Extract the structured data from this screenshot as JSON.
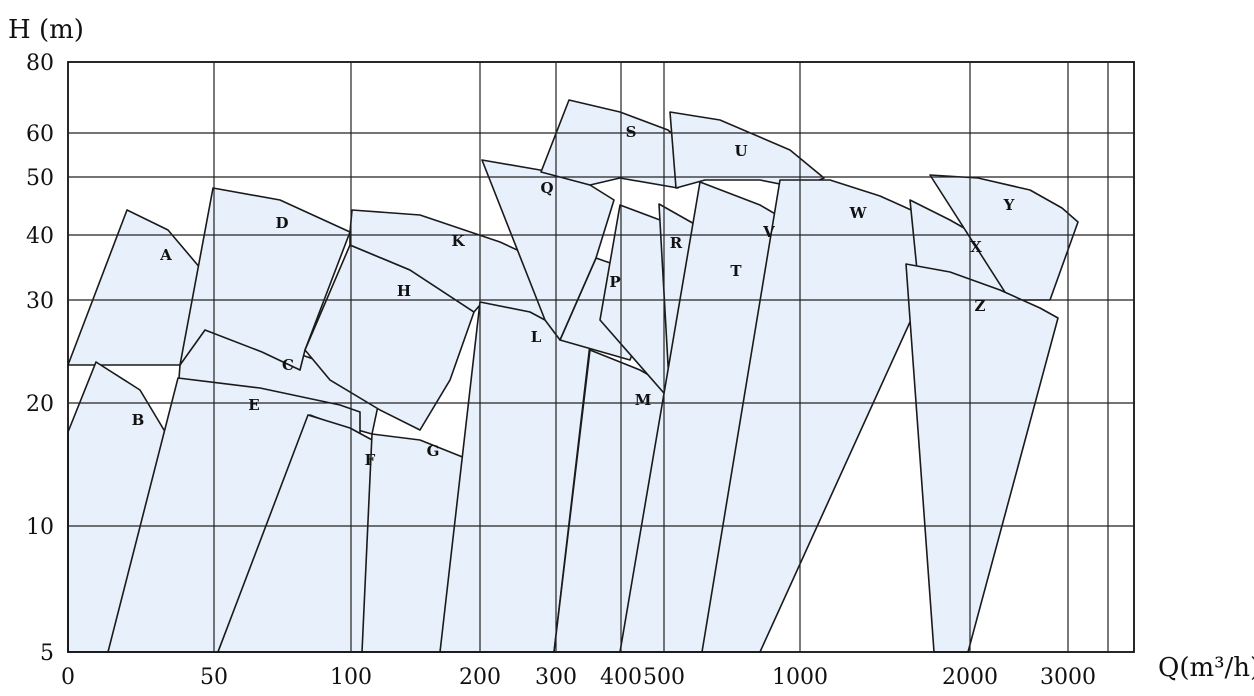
{
  "chart_data": {
    "type": "area",
    "ylabel": "H (m)",
    "xlabel": "Q(m³/h)",
    "y_ticks": [
      {
        "value": 5,
        "label": "5"
      },
      {
        "value": 10,
        "label": "10"
      },
      {
        "value": 20,
        "label": "20"
      },
      {
        "value": 30,
        "label": "30"
      },
      {
        "value": 40,
        "label": "40"
      },
      {
        "value": 50,
        "label": "50"
      },
      {
        "value": 60,
        "label": "60"
      },
      {
        "value": 80,
        "label": "80"
      }
    ],
    "x_ticks": [
      {
        "value": 0,
        "label": "0"
      },
      {
        "value": 50,
        "label": "50"
      },
      {
        "value": 100,
        "label": "100"
      },
      {
        "value": 200,
        "label": "200"
      },
      {
        "value": 300,
        "label": "300"
      },
      {
        "value": 400,
        "label": "400"
      },
      {
        "value": 500,
        "label": "500"
      },
      {
        "value": 1000,
        "label": "1000"
      },
      {
        "value": 2000,
        "label": "2000"
      },
      {
        "value": 3000,
        "label": "3000"
      }
    ],
    "zones": [
      {
        "label": "A",
        "q_range": [
          0,
          50
        ],
        "h_range": [
          23,
          43
        ]
      },
      {
        "label": "B",
        "q_range": [
          0,
          40
        ],
        "h_range": [
          5,
          23
        ]
      },
      {
        "label": "C",
        "q_range": [
          40,
          120
        ],
        "h_range": [
          16,
          27
        ]
      },
      {
        "label": "D",
        "q_range": [
          40,
          100
        ],
        "h_range": [
          19,
          47
        ]
      },
      {
        "label": "E",
        "q_range": [
          30,
          110
        ],
        "h_range": [
          5,
          22
        ]
      },
      {
        "label": "F",
        "q_range": [
          50,
          140
        ],
        "h_range": [
          5,
          19
        ]
      },
      {
        "label": "G",
        "q_range": [
          100,
          200
        ],
        "h_range": [
          5,
          19
        ]
      },
      {
        "label": "H",
        "q_range": [
          90,
          200
        ],
        "h_range": [
          16,
          37
        ]
      },
      {
        "label": "K",
        "q_range": [
          100,
          300
        ],
        "h_range": [
          21,
          44
        ]
      },
      {
        "label": "L",
        "q_range": [
          150,
          350
        ],
        "h_range": [
          5,
          29
        ]
      },
      {
        "label": "M",
        "q_range": [
          200,
          600
        ],
        "h_range": [
          5,
          25
        ]
      },
      {
        "label": "P",
        "q_range": [
          280,
          450
        ],
        "h_range": [
          23,
          33
        ]
      },
      {
        "label": "Q",
        "q_range": [
          180,
          400
        ],
        "h_range": [
          28,
          52
        ]
      },
      {
        "label": "R",
        "q_range": [
          300,
          600
        ],
        "h_range": [
          23,
          45
        ]
      },
      {
        "label": "S",
        "q_range": [
          280,
          500
        ],
        "h_range": [
          37,
          69
        ]
      },
      {
        "label": "T",
        "q_range": [
          400,
          700
        ],
        "h_range": [
          22,
          43
        ]
      },
      {
        "label": "U",
        "q_range": [
          500,
          1000
        ],
        "h_range": [
          40,
          66
        ]
      },
      {
        "label": "V",
        "q_range": [
          500,
          1200
        ],
        "h_range": [
          5,
          48
        ]
      },
      {
        "label": "W",
        "q_range": [
          650,
          1600
        ],
        "h_range": [
          5,
          48
        ]
      },
      {
        "label": "X",
        "q_range": [
          1500,
          2500
        ],
        "h_range": [
          27,
          45
        ]
      },
      {
        "label": "Y",
        "q_range": [
          1700,
          3000
        ],
        "h_range": [
          30,
          50
        ]
      },
      {
        "label": "Z",
        "q_range": [
          1500,
          3000
        ],
        "h_range": [
          5,
          35
        ]
      }
    ],
    "grid": true
  }
}
